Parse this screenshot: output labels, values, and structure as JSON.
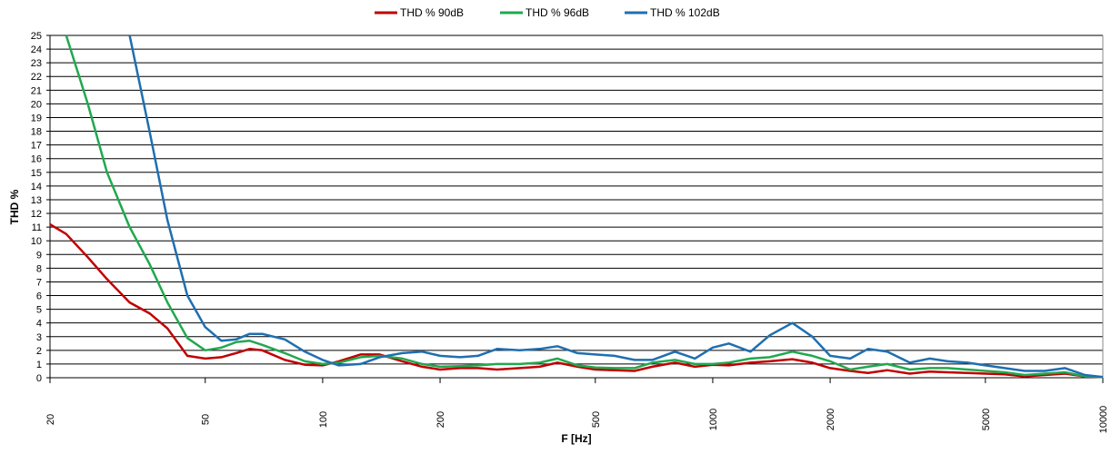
{
  "chart_data": {
    "type": "line",
    "x_label": "F [Hz]",
    "y_label": "THD %",
    "xscale": "log",
    "grid": true,
    "legend": "top",
    "xlim": [
      20,
      10000
    ],
    "xticks": [
      20,
      50,
      100,
      200,
      500,
      1000,
      2000,
      5000,
      10000
    ],
    "ylim": [
      0,
      25
    ],
    "yticks": [
      0,
      1,
      2,
      3,
      4,
      5,
      6,
      7,
      8,
      9,
      10,
      11,
      12,
      13,
      14,
      15,
      16,
      17,
      18,
      19,
      20,
      21,
      22,
      23,
      24,
      25
    ],
    "x": [
      20,
      22,
      25,
      28,
      32,
      36,
      40,
      45,
      50,
      55,
      60,
      65,
      70,
      80,
      90,
      100,
      110,
      125,
      140,
      160,
      180,
      200,
      225,
      250,
      280,
      320,
      360,
      400,
      450,
      500,
      560,
      630,
      700,
      800,
      900,
      1000,
      1100,
      1250,
      1400,
      1600,
      1800,
      2000,
      2250,
      2500,
      2800,
      3200,
      3600,
      4000,
      4500,
      5000,
      5600,
      6300,
      7100,
      8000,
      9000,
      10000
    ],
    "series": [
      {
        "name": "THD % 90dB",
        "color": "#c00000",
        "values": [
          11.2,
          10.5,
          8.8,
          7.2,
          5.5,
          4.7,
          3.6,
          1.6,
          1.4,
          1.5,
          1.8,
          2.1,
          2.0,
          1.3,
          0.95,
          0.9,
          1.2,
          1.7,
          1.7,
          1.2,
          0.8,
          0.6,
          0.7,
          0.7,
          0.6,
          0.7,
          0.8,
          1.1,
          0.8,
          0.6,
          0.55,
          0.5,
          0.8,
          1.1,
          0.8,
          0.95,
          0.9,
          1.1,
          1.2,
          1.35,
          1.1,
          0.7,
          0.5,
          0.35,
          0.55,
          0.3,
          0.45,
          0.4,
          0.35,
          0.3,
          0.25,
          0.1,
          0.2,
          0.3,
          0.1,
          0.05
        ]
      },
      {
        "name": "THD % 96dB",
        "color": "#21a84f",
        "values": [
          null,
          25,
          20,
          15,
          11,
          8.3,
          5.5,
          2.9,
          2.0,
          2.2,
          2.6,
          2.7,
          2.4,
          1.8,
          1.2,
          1.0,
          1.1,
          1.5,
          1.6,
          1.4,
          1.0,
          0.8,
          0.85,
          0.9,
          1.0,
          1.0,
          1.1,
          1.4,
          0.9,
          0.75,
          0.7,
          0.7,
          1.1,
          1.3,
          1.0,
          1.0,
          1.1,
          1.4,
          1.5,
          1.9,
          1.6,
          1.2,
          0.6,
          0.8,
          1.0,
          0.6,
          0.7,
          0.7,
          0.6,
          0.5,
          0.4,
          0.2,
          0.3,
          0.4,
          0.1,
          0.05
        ]
      },
      {
        "name": "THD % 102dB",
        "color": "#1f6fb0",
        "values": [
          null,
          null,
          null,
          null,
          25,
          18,
          11.5,
          6,
          3.7,
          2.7,
          2.8,
          3.2,
          3.2,
          2.8,
          1.9,
          1.3,
          0.9,
          1.0,
          1.5,
          1.8,
          1.9,
          1.6,
          1.5,
          1.6,
          2.1,
          2.0,
          2.1,
          2.3,
          1.8,
          1.7,
          1.6,
          1.3,
          1.3,
          1.9,
          1.4,
          2.2,
          2.5,
          1.9,
          3.1,
          4.0,
          3.0,
          1.6,
          1.4,
          2.1,
          1.9,
          1.1,
          1.4,
          1.2,
          1.1,
          0.9,
          0.7,
          0.5,
          0.5,
          0.7,
          0.2,
          0.05
        ]
      }
    ]
  }
}
